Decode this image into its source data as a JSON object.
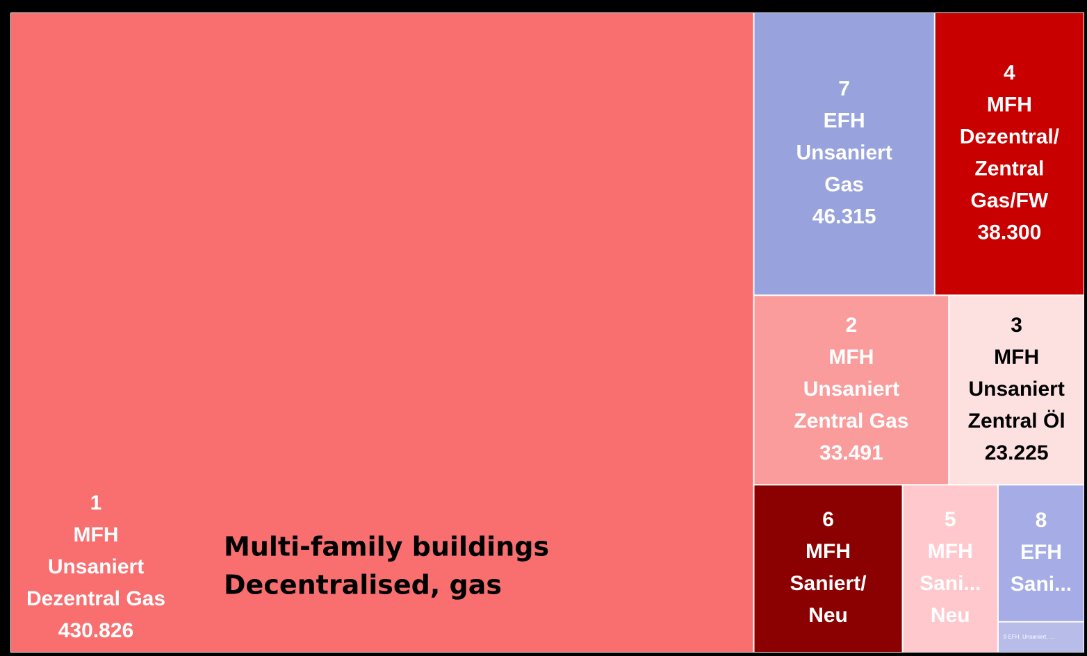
{
  "chart_data": {
    "type": "treemap",
    "annotation": [
      "Multi-family buildings",
      "Decentralised, gas"
    ],
    "tiles": [
      {
        "label": [
          "1",
          "MFH",
          "Unsaniert",
          "Dezentral Gas"
        ],
        "value": 430826,
        "value_label": "430.826",
        "color": "#f96f6f",
        "text_color": "#ffffff"
      },
      {
        "label": [
          "2",
          "MFH",
          "Unsaniert",
          "Zentral Gas"
        ],
        "value": 33491,
        "value_label": "33.491",
        "color": "#fb9c9c",
        "text_color": "#ffffff"
      },
      {
        "label": [
          "3",
          "MFH",
          "Unsaniert",
          "Zentral Öl"
        ],
        "value": 23225,
        "value_label": "23.225",
        "color": "#fde0e0",
        "text_color": "#000000"
      },
      {
        "label": [
          "4",
          "MFH",
          "Dezentral/",
          "Zentral",
          "Gas/FW"
        ],
        "value": 38300,
        "value_label": "38.300",
        "color": "#c90000",
        "text_color": "#ffffff"
      },
      {
        "label": [
          "5",
          "MFH",
          "Sani...",
          "Neu"
        ],
        "value": 14500,
        "color": "#ffc8cd",
        "text_color": "#ffffff"
      },
      {
        "label": [
          "6",
          "MFH",
          "Saniert/",
          "Neu"
        ],
        "value": 22600,
        "color": "#8b0000",
        "text_color": "#ffffff"
      },
      {
        "label": [
          "7",
          "EFH",
          "Unsaniert",
          "Gas"
        ],
        "value": 46315,
        "value_label": "46.315",
        "color": "#98a3de",
        "text_color": "#ffffff"
      },
      {
        "label": [
          "8",
          "EFH",
          "Sani..."
        ],
        "value": 10700,
        "color": "#a5ace6",
        "text_color": "#ffffff"
      },
      {
        "label": [
          "9 EFH, Unsaniert, ..."
        ],
        "value": 2400,
        "color": "#b7bce9",
        "text_color": "#ffffff"
      }
    ]
  }
}
